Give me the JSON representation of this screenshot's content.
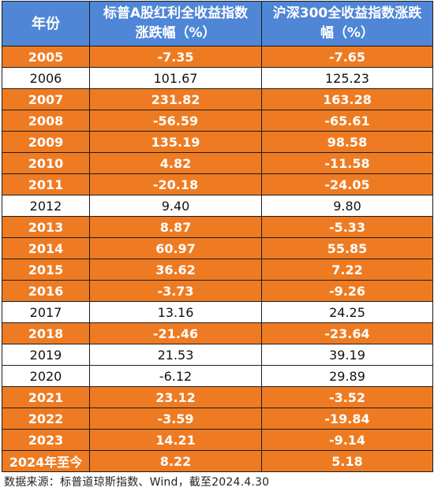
{
  "headers": {
    "year": "年份",
    "sp_line1": "标普A股红利全收益指数",
    "sp_line2": "涨跌幅（%）",
    "hs_line1": "沪深300全收益指数涨跌",
    "hs_line2": "幅（%）"
  },
  "rows": [
    {
      "year": "2005",
      "sp": "-7.35",
      "hs": "-7.65",
      "highlight": true
    },
    {
      "year": "2006",
      "sp": "101.67",
      "hs": "125.23",
      "highlight": false
    },
    {
      "year": "2007",
      "sp": "231.82",
      "hs": "163.28",
      "highlight": true
    },
    {
      "year": "2008",
      "sp": "-56.59",
      "hs": "-65.61",
      "highlight": true
    },
    {
      "year": "2009",
      "sp": "135.19",
      "hs": "98.58",
      "highlight": true
    },
    {
      "year": "2010",
      "sp": "4.82",
      "hs": "-11.58",
      "highlight": true
    },
    {
      "year": "2011",
      "sp": "-20.18",
      "hs": "-24.05",
      "highlight": true
    },
    {
      "year": "2012",
      "sp": "9.40",
      "hs": "9.80",
      "highlight": false
    },
    {
      "year": "2013",
      "sp": "8.87",
      "hs": "-5.33",
      "highlight": true
    },
    {
      "year": "2014",
      "sp": "60.97",
      "hs": "55.85",
      "highlight": true
    },
    {
      "year": "2015",
      "sp": "36.62",
      "hs": "7.22",
      "highlight": true
    },
    {
      "year": "2016",
      "sp": "-3.73",
      "hs": "-9.26",
      "highlight": true
    },
    {
      "year": "2017",
      "sp": "13.16",
      "hs": "24.25",
      "highlight": false
    },
    {
      "year": "2018",
      "sp": "-21.46",
      "hs": "-23.64",
      "highlight": true
    },
    {
      "year": "2019",
      "sp": "21.53",
      "hs": "39.19",
      "highlight": false
    },
    {
      "year": "2020",
      "sp": "-6.12",
      "hs": "29.89",
      "highlight": false
    },
    {
      "year": "2021",
      "sp": "23.12",
      "hs": "-3.52",
      "highlight": true
    },
    {
      "year": "2022",
      "sp": "-3.59",
      "hs": "-19.84",
      "highlight": true
    },
    {
      "year": "2023",
      "sp": "14.21",
      "hs": "-9.14",
      "highlight": true
    },
    {
      "year": "2024年至今",
      "sp": "8.22",
      "hs": "5.18",
      "highlight": true
    }
  ],
  "colors": {
    "header_bg": "#4f86d6",
    "highlight_bg": "#ee7b22",
    "plain_bg": "#ffffff"
  },
  "source_note": "数据来源：标普道琼斯指数、Wind，截至2024.4.30"
}
